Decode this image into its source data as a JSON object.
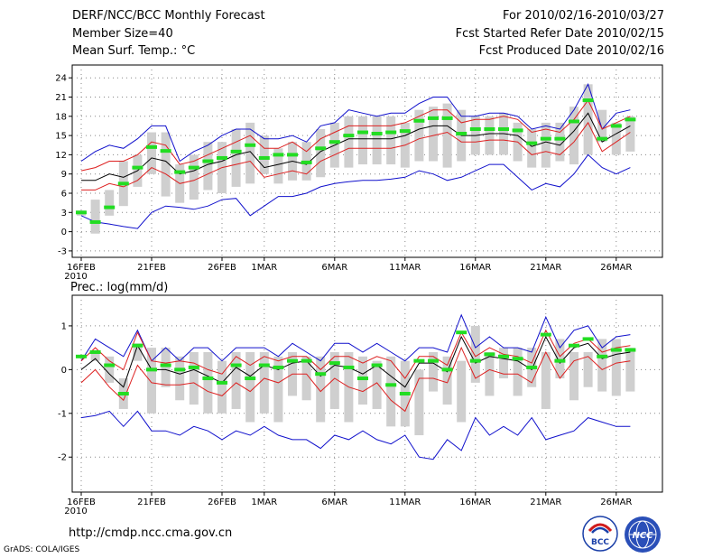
{
  "header": {
    "title": "DERF/NCC/BCC Monthly Forecast",
    "member_size": "Member Size=40",
    "variable": "Mean Surf. Temp.: °C",
    "period": "For 2010/02/16-2010/03/27",
    "refer_date": "Fcst Started Refer Date 2010/02/15",
    "produced_date": "Fcst Produced Date 2010/02/16"
  },
  "footer": {
    "url": "http://cmdp.ncc.cma.gov.cn",
    "credit": "GrADS: COLA/IGES",
    "logo_bcc_text": "BCC",
    "logo_ncc_text": "NCC"
  },
  "colors": {
    "box": "#cfcfcf",
    "median": "#22dd22",
    "mean": "#000000",
    "sd": "#dd2020",
    "extreme": "#1010cc"
  },
  "chart_data": [
    {
      "type": "box-ensemble",
      "name": "temperature",
      "title": "Mean Surf. Temp.: °C",
      "ylim": [
        -4,
        26
      ],
      "yticks": [
        -3,
        0,
        3,
        6,
        9,
        12,
        15,
        18,
        21,
        24
      ],
      "x_days": 40,
      "xticks": [
        {
          "day": 0,
          "label": "16FEB",
          "sub": "2010"
        },
        {
          "day": 5,
          "label": "21FEB"
        },
        {
          "day": 10,
          "label": "26FEB"
        },
        {
          "day": 13,
          "label": "1MAR"
        },
        {
          "day": 18,
          "label": "6MAR"
        },
        {
          "day": 23,
          "label": "11MAR"
        },
        {
          "day": 28,
          "label": "16MAR"
        },
        {
          "day": 33,
          "label": "21MAR"
        },
        {
          "day": 38,
          "label": "26MAR"
        }
      ],
      "series": {
        "box_low": [
          2.5,
          -0.3,
          2.5,
          4,
          7,
          9,
          5.5,
          4.5,
          5,
          6.5,
          6,
          7,
          7.5,
          9,
          7.5,
          8,
          8,
          8.5,
          10,
          10,
          10.5,
          10.5,
          10.5,
          10,
          11,
          11,
          10,
          11,
          12,
          12,
          12,
          11,
          10,
          10,
          11,
          10.5,
          12,
          14,
          12,
          12.5
        ],
        "box_high": [
          3.3,
          5,
          6.5,
          11,
          12,
          15.5,
          15.5,
          10.5,
          12,
          14,
          14,
          16,
          17,
          15,
          13,
          14,
          14,
          16,
          17,
          18,
          18,
          18,
          18,
          17,
          19,
          19.5,
          20,
          19,
          18,
          18,
          18.5,
          17,
          16,
          17,
          17,
          19.5,
          23,
          19,
          17,
          18
        ],
        "median": [
          3,
          1.5,
          3.8,
          7.5,
          10,
          13.2,
          12.6,
          9.3,
          10,
          11,
          11.5,
          12.5,
          13.5,
          11.5,
          12,
          12,
          10.8,
          13,
          14,
          15,
          15.5,
          15.3,
          15.5,
          15.7,
          17.3,
          17.7,
          17.7,
          15.3,
          16,
          16,
          16,
          15.8,
          13.8,
          14.5,
          14.5,
          17.2,
          20.5,
          14.5,
          16.5,
          17.5
        ],
        "upper_sd": [
          9.5,
          10,
          11,
          11,
          12,
          14,
          13.5,
          10.5,
          11,
          12,
          13,
          14,
          15,
          13,
          13,
          14,
          12.5,
          14.5,
          15.5,
          16.5,
          16.5,
          16.5,
          16.5,
          17,
          18,
          19,
          19,
          17,
          17.5,
          17.5,
          18,
          17.5,
          15.5,
          16,
          15.5,
          17.5,
          20.5,
          16,
          17,
          18
        ],
        "mean": [
          8,
          8,
          9,
          8.5,
          9.5,
          11.5,
          11,
          9,
          9.5,
          10.5,
          11,
          12,
          12.5,
          10,
          10.5,
          11,
          10.5,
          12.5,
          13.5,
          14.5,
          14.5,
          14.5,
          14.5,
          15,
          16,
          16.5,
          16.5,
          15,
          15,
          15.3,
          15.3,
          15,
          13.3,
          14,
          13.5,
          15.7,
          18.5,
          14,
          15.3,
          16.5
        ],
        "lower_sd": [
          6.5,
          6.5,
          7.5,
          7,
          8,
          10,
          9,
          7.5,
          8,
          9,
          10,
          10.5,
          11,
          8.5,
          9,
          9.5,
          9,
          11,
          12,
          13,
          13,
          13,
          13,
          13.5,
          14.5,
          15,
          15.5,
          14,
          14,
          14.3,
          14.3,
          14,
          12,
          12.5,
          12,
          14,
          17,
          12.5,
          14,
          15.5
        ],
        "max_line": [
          11,
          12.5,
          13.5,
          13,
          14.5,
          16.5,
          16.5,
          11,
          12.5,
          13.5,
          15,
          16,
          16,
          14.5,
          14.5,
          15,
          14,
          16.5,
          17,
          19,
          18.5,
          18,
          18.5,
          18.5,
          20,
          21,
          21,
          18,
          18,
          18.5,
          18.5,
          18,
          16,
          16.5,
          16,
          19,
          23,
          16,
          18.5,
          19
        ],
        "min_line": [
          2.5,
          1.5,
          1.2,
          0.8,
          0.5,
          3,
          4,
          3.8,
          3.5,
          4,
          5,
          5.2,
          2.5,
          4,
          5.5,
          5.5,
          6,
          7,
          7.5,
          7.8,
          8,
          8,
          8.2,
          8.5,
          9.5,
          9,
          8,
          8.5,
          9.5,
          10.5,
          10.5,
          8.5,
          6.5,
          7.5,
          7,
          9,
          12,
          10,
          9,
          10
        ]
      }
    },
    {
      "type": "box-ensemble",
      "name": "precipitation",
      "title": "Prec.: log(mm/d)",
      "ylim": [
        -2.8,
        1.7
      ],
      "yticks": [
        -2,
        -1,
        0,
        1
      ],
      "x_days": 40,
      "xticks": [
        {
          "day": 0,
          "label": "16FEB",
          "sub": "2010"
        },
        {
          "day": 5,
          "label": "21FEB"
        },
        {
          "day": 10,
          "label": "26FEB"
        },
        {
          "day": 13,
          "label": "1MAR"
        },
        {
          "day": 18,
          "label": "6MAR"
        },
        {
          "day": 23,
          "label": "11MAR"
        },
        {
          "day": 28,
          "label": "16MAR"
        },
        {
          "day": 33,
          "label": "21MAR"
        },
        {
          "day": 38,
          "label": "26MAR"
        }
      ],
      "series": {
        "box_low": [
          0.3,
          0.2,
          -0.3,
          -0.9,
          0.2,
          -1,
          -0.4,
          -0.7,
          -0.8,
          -1,
          -1,
          -0.9,
          -1.2,
          -1,
          -1.2,
          -0.6,
          -0.7,
          -1.2,
          -0.9,
          -1.2,
          -0.8,
          -0.9,
          -1.3,
          -1.3,
          -1.5,
          -0.5,
          -0.8,
          -1.2,
          -0.3,
          -0.6,
          -0.2,
          -0.6,
          -0.4,
          -0.9,
          -0.2,
          -0.7,
          -0.4,
          -0.5,
          -0.6,
          -0.5
        ],
        "box_high": [
          0.3,
          0.4,
          0.3,
          -0.2,
          0.6,
          0.5,
          0.5,
          0.3,
          0.4,
          0.4,
          0.2,
          0.4,
          0.4,
          0.4,
          0.3,
          0.4,
          0.3,
          0.3,
          0.4,
          0.4,
          0.3,
          0.2,
          0.3,
          0.2,
          0,
          0.4,
          0.3,
          0.2,
          1.0,
          0.4,
          0.5,
          0.5,
          0.5,
          0.4,
          0.7,
          0.4,
          0.4,
          0.7,
          0.7,
          0.5
        ],
        "median": [
          0.3,
          0.4,
          0.1,
          -0.55,
          0.55,
          0,
          0.1,
          0,
          0.05,
          -0.2,
          -0.3,
          0.1,
          -0.2,
          0.1,
          0.05,
          0.2,
          0.2,
          -0.1,
          0.15,
          0.05,
          -0.2,
          0.1,
          -0.35,
          -0.55,
          0.2,
          0.2,
          0,
          0.85,
          0.2,
          0.35,
          0.3,
          0.25,
          0.05,
          0.8,
          0.2,
          0.55,
          0.7,
          0.3,
          0.45,
          0.45
        ],
        "upper_sd": [
          0.2,
          0.5,
          0.2,
          0,
          0.85,
          0.2,
          0.15,
          0.2,
          0.15,
          0,
          -0.1,
          0.3,
          0.1,
          0.3,
          0.2,
          0.3,
          0.3,
          0,
          0.3,
          0.3,
          0.15,
          0.3,
          0.2,
          -0.2,
          0.3,
          0.3,
          0.1,
          0.85,
          0.3,
          0.5,
          0.35,
          0.3,
          0.15,
          0.9,
          0.3,
          0.6,
          0.7,
          0.4,
          0.5,
          0.55
        ],
        "mean": [
          0,
          0.25,
          -0.1,
          -0.4,
          0.55,
          0,
          0,
          -0.1,
          0,
          -0.15,
          -0.3,
          0.05,
          -0.15,
          0.1,
          0,
          0.15,
          0.2,
          -0.15,
          0.1,
          0.05,
          -0.1,
          0.1,
          -0.15,
          -0.4,
          0.15,
          0.15,
          -0.05,
          0.75,
          0.15,
          0.3,
          0.25,
          0.2,
          0,
          0.75,
          0.15,
          0.5,
          0.6,
          0.25,
          0.35,
          0.4
        ],
        "lower_sd": [
          -0.3,
          0,
          -0.4,
          -0.7,
          0.1,
          -0.3,
          -0.35,
          -0.35,
          -0.3,
          -0.5,
          -0.6,
          -0.3,
          -0.5,
          -0.2,
          -0.3,
          -0.1,
          -0.1,
          -0.5,
          -0.2,
          -0.4,
          -0.5,
          -0.3,
          -0.7,
          -0.95,
          -0.2,
          -0.2,
          -0.3,
          0.5,
          -0.2,
          0,
          -0.1,
          -0.1,
          -0.3,
          0.4,
          -0.2,
          0.2,
          0.3,
          0,
          0.15,
          0.2
        ],
        "max_line": [
          0.2,
          0.7,
          0.5,
          0.3,
          0.9,
          0.2,
          0.5,
          0.2,
          0.5,
          0.5,
          0.2,
          0.5,
          0.5,
          0.5,
          0.3,
          0.6,
          0.4,
          0.2,
          0.6,
          0.6,
          0.4,
          0.6,
          0.4,
          0.2,
          0.5,
          0.5,
          0.4,
          1.25,
          0.5,
          0.75,
          0.5,
          0.5,
          0.4,
          1.2,
          0.5,
          0.9,
          1.0,
          0.5,
          0.75,
          0.8
        ],
        "min_line": [
          -1.1,
          -1.05,
          -0.95,
          -1.3,
          -0.95,
          -1.4,
          -1.4,
          -1.5,
          -1.3,
          -1.4,
          -1.6,
          -1.4,
          -1.5,
          -1.3,
          -1.5,
          -1.6,
          -1.6,
          -1.8,
          -1.5,
          -1.6,
          -1.4,
          -1.6,
          -1.7,
          -1.5,
          -2.0,
          -2.05,
          -1.6,
          -1.85,
          -1.1,
          -1.5,
          -1.3,
          -1.5,
          -1.1,
          -1.6,
          -1.5,
          -1.4,
          -1.1,
          -1.2,
          -1.3,
          -1.3
        ]
      }
    }
  ]
}
